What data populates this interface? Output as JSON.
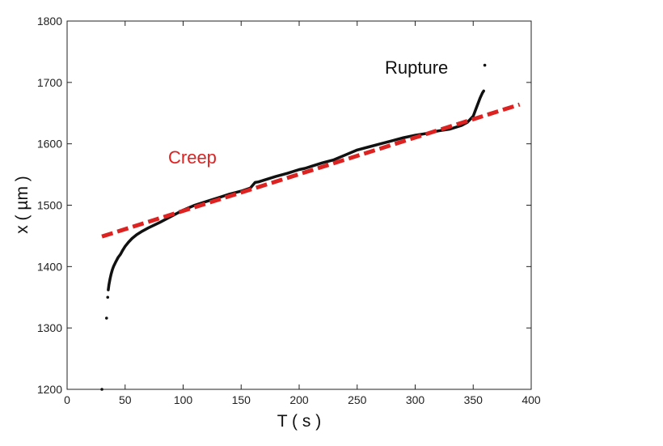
{
  "chart_data": {
    "type": "scatter",
    "xlabel": "T ( s )",
    "ylabel": "x  ( µm )",
    "xlim": [
      0,
      400
    ],
    "ylim": [
      1200,
      1800
    ],
    "xticks": [
      0,
      50,
      100,
      150,
      200,
      250,
      300,
      350,
      400
    ],
    "yticks": [
      1200,
      1300,
      1400,
      1500,
      1600,
      1700,
      1800
    ],
    "grid": false,
    "legend": "none",
    "annotations": [
      {
        "text": "Creep",
        "color": "#dd2222"
      },
      {
        "text": "Rupture",
        "color": "#111111"
      }
    ],
    "series": [
      {
        "style": "points",
        "color": "#111111",
        "x": [
          30,
          34,
          35,
          35.5,
          36,
          37,
          38,
          39,
          40,
          42,
          44,
          46,
          48,
          50,
          53,
          56,
          60,
          65,
          70,
          80,
          90,
          100,
          110,
          120,
          130,
          140,
          150,
          158,
          162,
          165,
          170,
          180,
          190,
          200,
          205,
          210,
          220,
          230,
          240,
          250,
          260,
          270,
          280,
          290,
          300,
          310,
          320,
          330,
          340,
          345,
          350,
          352,
          354,
          356,
          358,
          359,
          360
        ],
        "y": [
          1200,
          1316,
          1350,
          1362,
          1370,
          1380,
          1388,
          1395,
          1400,
          1408,
          1415,
          1420,
          1427,
          1433,
          1440,
          1446,
          1452,
          1458,
          1463,
          1472,
          1482,
          1492,
          1500,
          1506,
          1512,
          1518,
          1523,
          1528,
          1537,
          1538,
          1541,
          1547,
          1552,
          1558,
          1560,
          1563,
          1569,
          1574,
          1582,
          1590,
          1595,
          1600,
          1605,
          1610,
          1614,
          1617,
          1621,
          1624,
          1630,
          1635,
          1645,
          1655,
          1665,
          1675,
          1683,
          1686,
          1728
        ]
      },
      {
        "style": "dashed-line",
        "color": "#dd2222",
        "x": [
          30,
          390
        ],
        "y": [
          1449,
          1664
        ]
      }
    ]
  }
}
